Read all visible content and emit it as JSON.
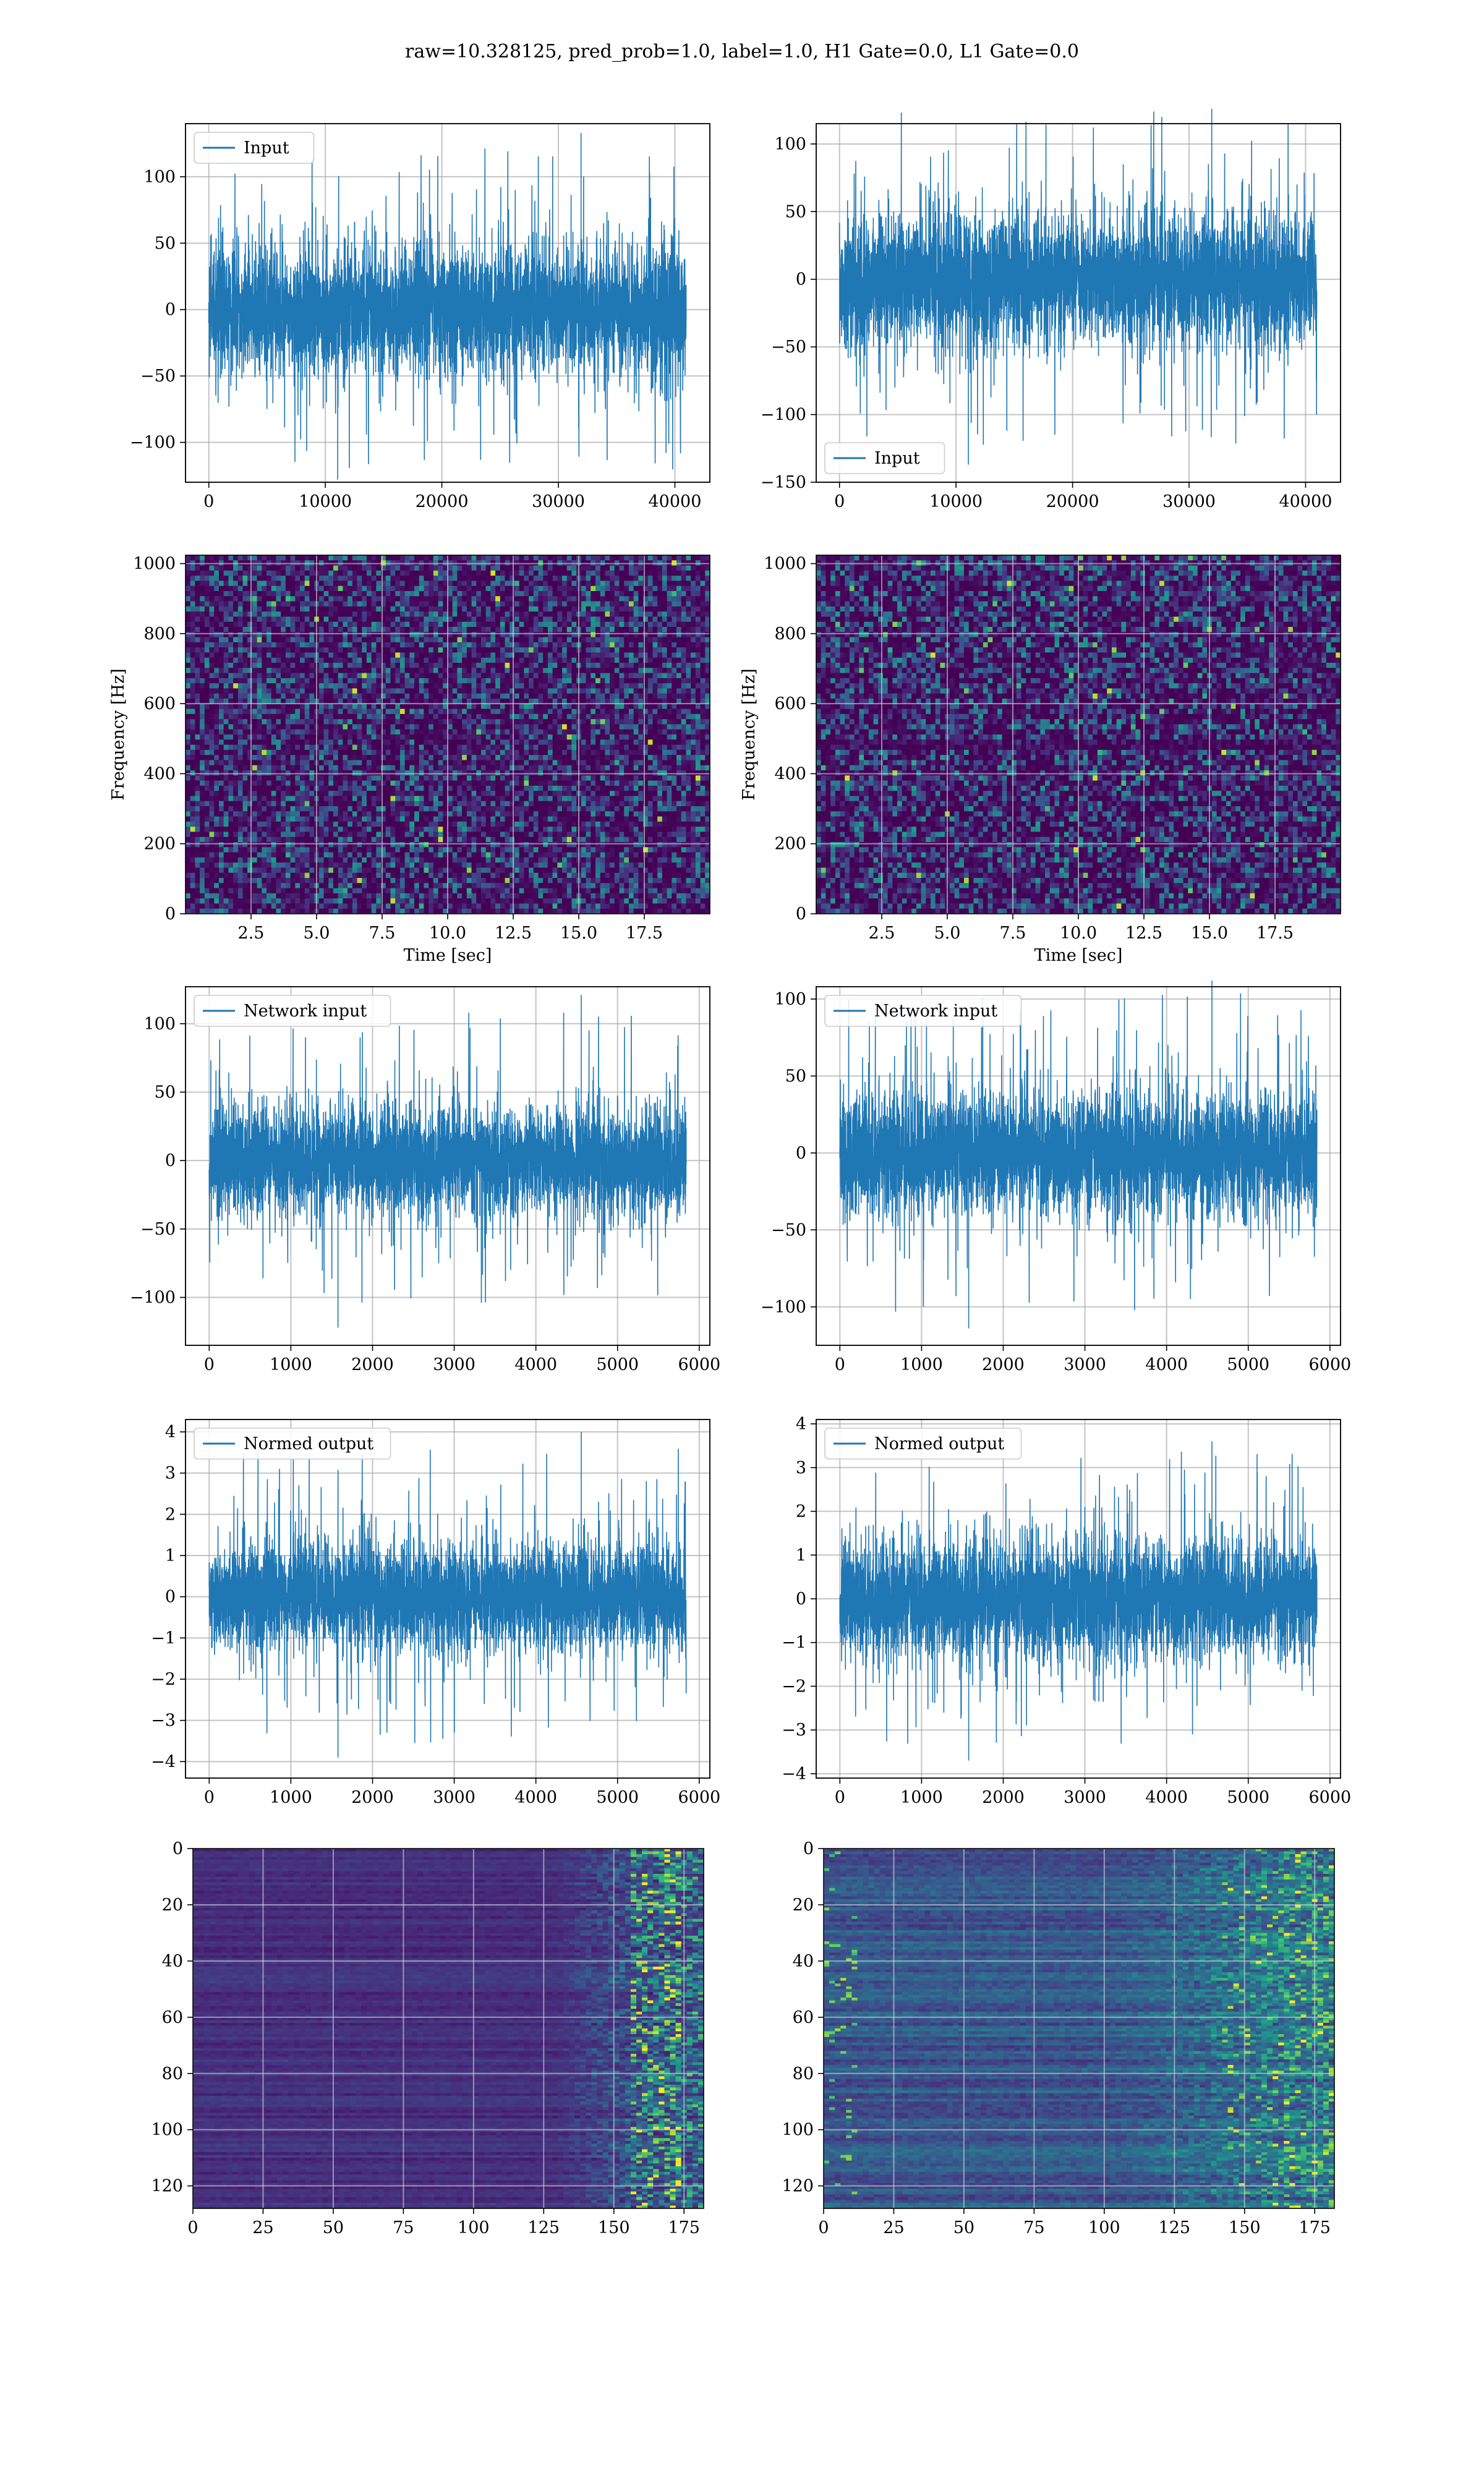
{
  "figure": {
    "title": "raw=10.328125, pred_prob=1.0, label=1.0, H1 Gate=0.0, L1 Gate=0.0"
  },
  "colors": {
    "line": "#1f77b4",
    "grid": "#b0b0b0",
    "viridis_low": "#440154",
    "viridis_mid": "#21918c",
    "viridis_high": "#fde725"
  },
  "chart_data": [
    {
      "id": "input_left",
      "type": "line",
      "series": [
        {
          "name": "Input"
        }
      ],
      "legend": "top-left",
      "xlim": [
        -2000,
        43000
      ],
      "ylim": [
        -130,
        140
      ],
      "xticks": [
        0,
        10000,
        20000,
        30000,
        40000
      ],
      "yticks": [
        -100,
        -50,
        0,
        50,
        100
      ],
      "n": 40960,
      "envelope": {
        "typical": 55,
        "max": 133,
        "min": -128
      },
      "grid": true
    },
    {
      "id": "input_right",
      "type": "line",
      "series": [
        {
          "name": "Input"
        }
      ],
      "legend": "bottom-left",
      "xlim": [
        -2000,
        43000
      ],
      "ylim": [
        -150,
        115
      ],
      "xticks": [
        0,
        10000,
        20000,
        30000,
        40000
      ],
      "yticks": [
        -150,
        -100,
        -50,
        0,
        50,
        100
      ],
      "n": 40960,
      "envelope": {
        "typical": 55,
        "max": 126,
        "min": -137
      },
      "grid": true
    },
    {
      "id": "spec_left",
      "type": "heatmap",
      "xlabel": "Time [sec]",
      "ylabel": "Frequency [Hz]",
      "xlim": [
        0,
        20
      ],
      "ylim": [
        0,
        1024
      ],
      "xticks": [
        2.5,
        5.0,
        7.5,
        10.0,
        12.5,
        15.0,
        17.5
      ],
      "yticks": [
        0,
        200,
        400,
        600,
        800,
        1000
      ],
      "colormap": "viridis",
      "grid": true
    },
    {
      "id": "spec_right",
      "type": "heatmap",
      "xlabel": "Time [sec]",
      "ylabel": "Frequency [Hz]",
      "xlim": [
        0,
        20
      ],
      "ylim": [
        0,
        1024
      ],
      "xticks": [
        2.5,
        5.0,
        7.5,
        10.0,
        12.5,
        15.0,
        17.5
      ],
      "yticks": [
        0,
        200,
        400,
        600,
        800,
        1000
      ],
      "colormap": "viridis",
      "grid": true
    },
    {
      "id": "net_left",
      "type": "line",
      "series": [
        {
          "name": "Network input"
        }
      ],
      "legend": "top-left",
      "xlim": [
        -290,
        6130
      ],
      "ylim": [
        -135,
        127
      ],
      "xticks": [
        0,
        1000,
        2000,
        3000,
        4000,
        5000,
        6000
      ],
      "yticks": [
        -100,
        -50,
        0,
        50,
        100
      ],
      "n": 5840,
      "envelope": {
        "typical": 45,
        "max": 121,
        "min": -122
      },
      "grid": true
    },
    {
      "id": "net_right",
      "type": "line",
      "series": [
        {
          "name": "Network input"
        }
      ],
      "legend": "top-left",
      "xlim": [
        -290,
        6130
      ],
      "ylim": [
        -125,
        108
      ],
      "xticks": [
        0,
        1000,
        2000,
        3000,
        4000,
        5000,
        6000
      ],
      "yticks": [
        -100,
        -50,
        0,
        50,
        100
      ],
      "n": 5840,
      "envelope": {
        "typical": 45,
        "max": 112,
        "min": -114
      },
      "grid": true
    },
    {
      "id": "norm_left",
      "type": "line",
      "series": [
        {
          "name": "Normed output"
        }
      ],
      "legend": "top-left",
      "xlim": [
        -290,
        6130
      ],
      "ylim": [
        -4.4,
        4.3
      ],
      "xticks": [
        0,
        1000,
        2000,
        3000,
        4000,
        5000,
        6000
      ],
      "yticks": [
        -4,
        -3,
        -2,
        -1,
        0,
        1,
        2,
        3,
        4
      ],
      "n": 5840,
      "envelope": {
        "typical": 1.5,
        "max": 4.0,
        "min": -3.9
      },
      "grid": true
    },
    {
      "id": "norm_right",
      "type": "line",
      "series": [
        {
          "name": "Normed output"
        }
      ],
      "legend": "top-left",
      "xlim": [
        -290,
        6130
      ],
      "ylim": [
        -4.1,
        4.1
      ],
      "xticks": [
        0,
        1000,
        2000,
        3000,
        4000,
        5000,
        6000
      ],
      "yticks": [
        -4,
        -3,
        -2,
        -1,
        0,
        1,
        2,
        3,
        4
      ],
      "n": 5840,
      "envelope": {
        "typical": 1.5,
        "max": 3.6,
        "min": -3.7
      },
      "grid": true
    },
    {
      "id": "feat_left",
      "type": "heatmap",
      "xlim": [
        0,
        182
      ],
      "ylim": [
        128,
        0
      ],
      "xticks": [
        0,
        25,
        50,
        75,
        100,
        125,
        150,
        175
      ],
      "yticks": [
        0,
        20,
        40,
        60,
        80,
        100,
        120
      ],
      "colormap": "viridis",
      "grid": true
    },
    {
      "id": "feat_right",
      "type": "heatmap",
      "xlim": [
        0,
        182
      ],
      "ylim": [
        128,
        0
      ],
      "xticks": [
        0,
        25,
        50,
        75,
        100,
        125,
        150,
        175
      ],
      "yticks": [
        0,
        20,
        40,
        60,
        80,
        100,
        120
      ],
      "colormap": "viridis",
      "grid": true
    }
  ]
}
